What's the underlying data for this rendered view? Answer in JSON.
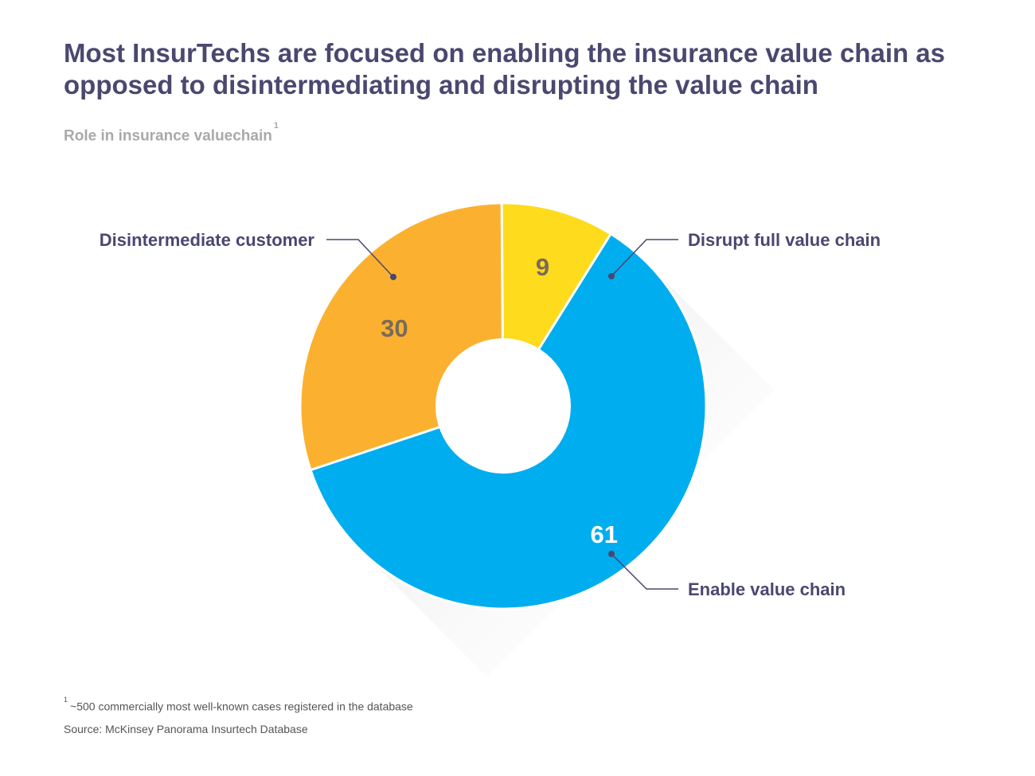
{
  "header": {
    "title": "Most InsurTechs are focused on enabling the insurance value chain as opposed to disintermediating and disrupting the value chain",
    "subtitle": "Role in insurance valuechain",
    "subtitle_marker": "1"
  },
  "footer": {
    "footnote_marker": "1",
    "footnote": "~500 commercially most well-known cases registered in the database",
    "source": "Source: McKinsey Panorama Insurtech Database"
  },
  "chart_data": {
    "type": "pie",
    "variant": "donut",
    "title": "Most InsurTechs are focused on enabling the insurance value chain as opposed to disintermediating and disrupting the value chain",
    "subtitle": "Role in insurance valuechain",
    "categories": [
      "Enable value chain",
      "Disintermediate customer",
      "Disrupt full value chain"
    ],
    "values": [
      61,
      30,
      9
    ],
    "colors": [
      "#00adee",
      "#fbb12f",
      "#fedb1d"
    ],
    "label_colors": [
      "#ffffff",
      "#7a6a5a",
      "#7a6a5a"
    ],
    "legend": "none",
    "start_angle_deg": 58
  }
}
